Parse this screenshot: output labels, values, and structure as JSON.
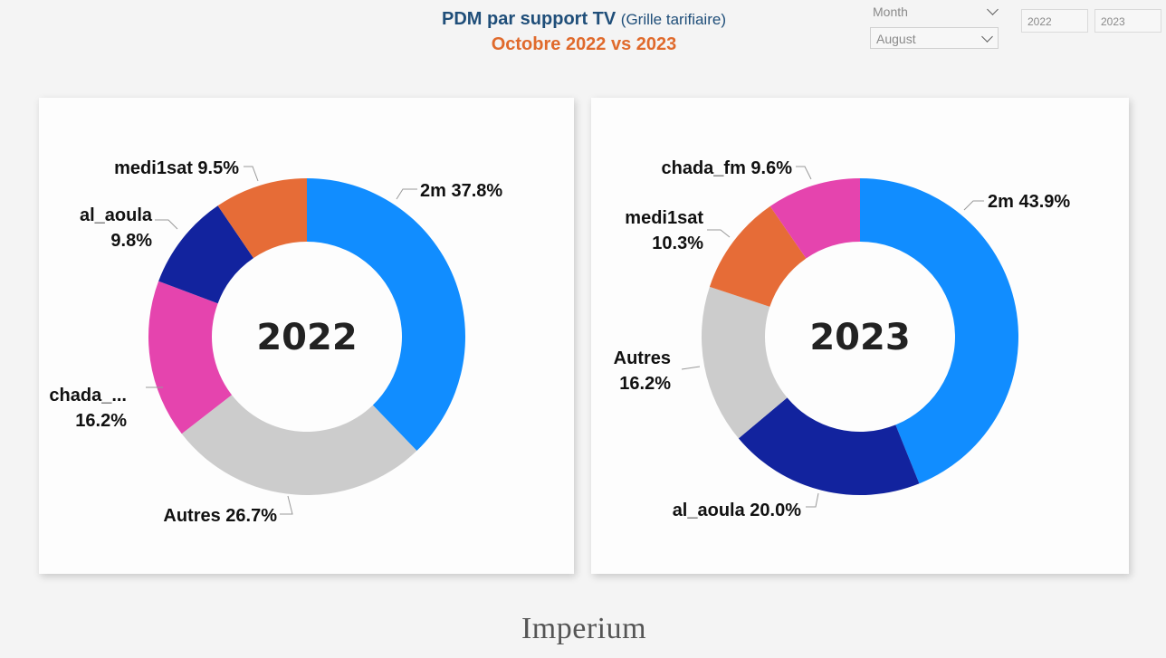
{
  "header": {
    "title_main": "PDM par support TV",
    "title_sub": "(Grille tarifiaire)",
    "subtitle": "Octobre 2022 vs 2023"
  },
  "filters": {
    "month_label": "Month",
    "month_value": "August",
    "year_from": "2022",
    "year_to": "2023"
  },
  "footer": {
    "brand": "Imperium"
  },
  "chart_data": [
    {
      "type": "pie",
      "center_label": "2022",
      "slices": [
        {
          "label": "2m",
          "value": 37.8,
          "display": "2m 37.8%",
          "color": "#118dff"
        },
        {
          "label": "Autres",
          "value": 26.7,
          "display": "Autres 26.7%",
          "color": "#cccccc"
        },
        {
          "label": "chada_...",
          "value": 16.2,
          "display_lines": [
            "chada_...",
            "16.2%"
          ],
          "color": "#e544ae"
        },
        {
          "label": "al_aoula",
          "value": 9.8,
          "display_lines": [
            "al_aoula",
            "9.8%"
          ],
          "color": "#12239e"
        },
        {
          "label": "medi1sat",
          "value": 9.5,
          "display": "medi1sat 9.5%",
          "color": "#e66c37"
        }
      ]
    },
    {
      "type": "pie",
      "center_label": "2023",
      "slices": [
        {
          "label": "2m",
          "value": 43.9,
          "display": "2m 43.9%",
          "color": "#118dff"
        },
        {
          "label": "al_aoula",
          "value": 20.0,
          "display": "al_aoula 20.0%",
          "color": "#12239e"
        },
        {
          "label": "Autres",
          "value": 16.2,
          "display_lines": [
            "Autres",
            "16.2%"
          ],
          "color": "#cccccc"
        },
        {
          "label": "medi1sat",
          "value": 10.3,
          "display_lines": [
            "medi1sat",
            "10.3%"
          ],
          "color": "#e66c37"
        },
        {
          "label": "chada_fm",
          "value": 9.6,
          "display": "chada_fm 9.6%",
          "color": "#e544ae"
        }
      ]
    }
  ]
}
